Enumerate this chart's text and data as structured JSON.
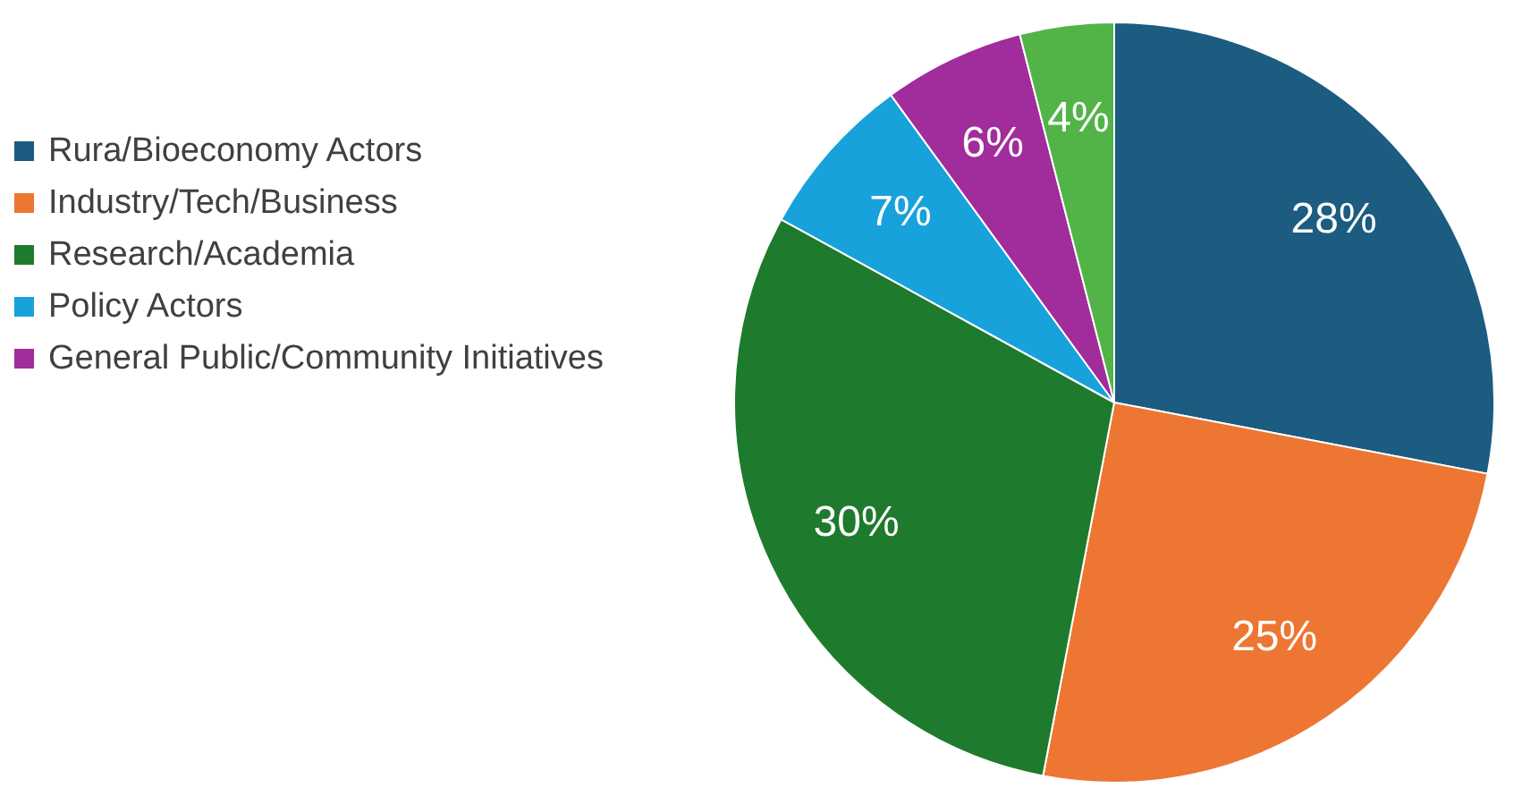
{
  "chart_data": {
    "type": "pie",
    "categories": [
      "Rura/Bioeconomy Actors",
      "Industry/Tech/Business",
      "Research/Academia",
      "Policy Actors",
      "General Public/Community Initiatives",
      null
    ],
    "values": [
      28,
      25,
      30,
      7,
      6,
      4
    ],
    "colors": [
      "#1b5c80",
      "#ed7633",
      "#1e7a2c",
      "#17a2db",
      "#a12c9b",
      "#52b447"
    ],
    "value_labels": [
      "28%",
      "25%",
      "30%",
      "7%",
      "6%",
      "4%"
    ],
    "legend": "left"
  }
}
